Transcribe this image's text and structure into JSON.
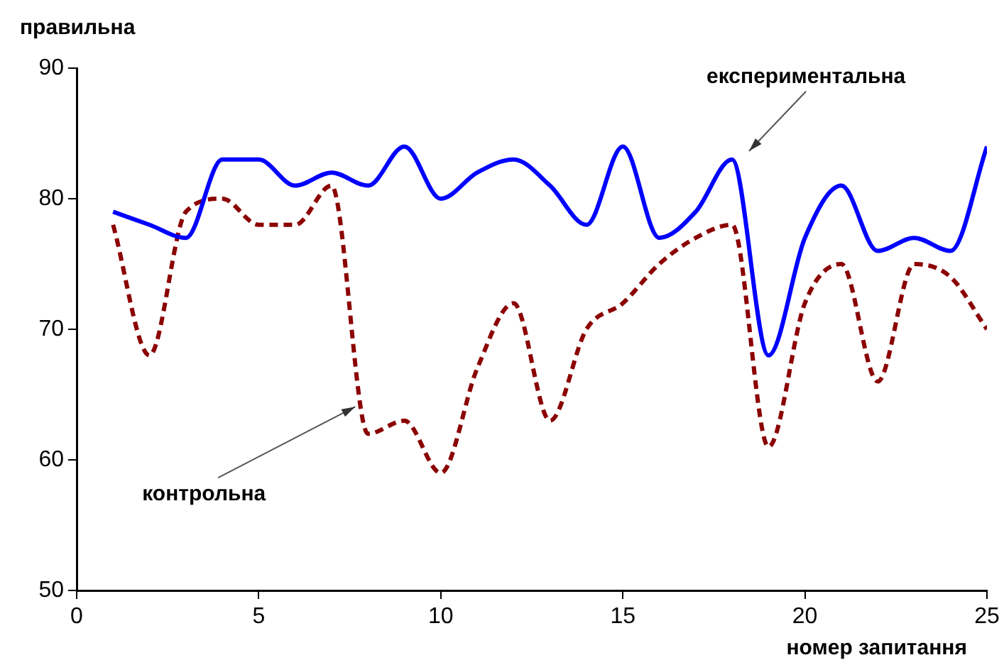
{
  "chart_data": {
    "type": "line",
    "xlabel": "номер запитання",
    "ylabel": "правильна",
    "x": [
      1,
      2,
      3,
      4,
      5,
      6,
      7,
      8,
      9,
      10,
      11,
      12,
      13,
      14,
      15,
      16,
      17,
      18,
      19,
      20,
      21,
      22,
      23,
      24,
      25
    ],
    "series": [
      {
        "name": "експериментальна",
        "color": "#0000ff",
        "line_style": "solid",
        "values": [
          79,
          78,
          77,
          83,
          83,
          81,
          82,
          81,
          84,
          80,
          82,
          83,
          81,
          78,
          84,
          77,
          79,
          83,
          68,
          77,
          81,
          76,
          77,
          76,
          84
        ]
      },
      {
        "name": "контрольна",
        "color": "#8b0000",
        "line_style": "dashed",
        "values": [
          78,
          68,
          79,
          80,
          78,
          78,
          81,
          62,
          63,
          59,
          67,
          72,
          63,
          70,
          72,
          75,
          77,
          78,
          61,
          72,
          75,
          66,
          75,
          74,
          70
        ]
      }
    ],
    "xlim": [
      0,
      25
    ],
    "xticks": [
      0,
      5,
      10,
      15,
      20,
      25
    ],
    "ylim": [
      50,
      90
    ],
    "yticks": [
      50,
      60,
      70,
      80,
      90
    ],
    "grid": false,
    "legend": false,
    "marker": "none"
  }
}
